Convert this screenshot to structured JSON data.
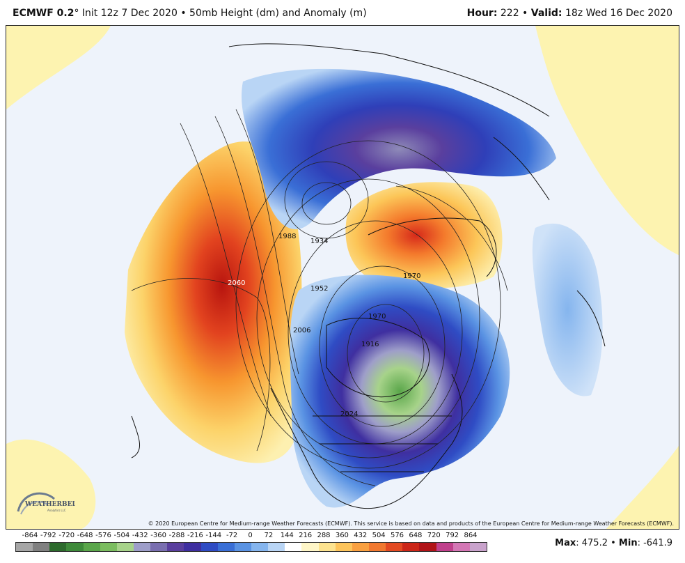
{
  "header": {
    "model": "ECMWF 0.2",
    "degree": "°",
    "init": " Init 12z 7 Dec 2020 • 50mb Height (dm) and Anomaly (m)",
    "hour_label": "Hour:",
    "hour_value": " 222 • ",
    "valid_label": "Valid:",
    "valid_value": " 18z Wed 16 Dec 2020"
  },
  "map": {
    "contour_labels": [
      "1934",
      "1988",
      "2060",
      "1952",
      "1970",
      "1970",
      "2006",
      "2024",
      "1916"
    ],
    "colors": {
      "background_ocean": "#eef3fb",
      "positive_anomaly_low": "#fdf3b0",
      "positive_anomaly_high": "#c21b12",
      "negative_anomaly_low": "#b9d7f5",
      "negative_anomaly_high": "#3b2f9a",
      "core_low": "#76b554"
    }
  },
  "copyright": "© 2020 European Centre for Medium-range Weather Forecasts (ECMWF). This service is based on data and products of the European Centre for Medium-range Weather Forecasts (ECMWF).",
  "logo": {
    "name": "WEATHERBELL",
    "sub": "Analytics LLC"
  },
  "colorbar": {
    "labels": [
      "-864",
      "-792",
      "-720",
      "-648",
      "-576",
      "-504",
      "-432",
      "-360",
      "-288",
      "-216",
      "-144",
      "-72",
      "0",
      "72",
      "144",
      "216",
      "288",
      "360",
      "432",
      "504",
      "576",
      "648",
      "720",
      "792",
      "864"
    ],
    "colors": [
      "#a6a6a6",
      "#808080",
      "#2d6b2d",
      "#3e8a3a",
      "#5aa64a",
      "#7bbd5f",
      "#a7d38a",
      "#9e9ec9",
      "#7a6fb0",
      "#5a3f9e",
      "#3f2fa0",
      "#2f4cc4",
      "#3a6fd6",
      "#5a93e3",
      "#85b5ee",
      "#b9d5f5",
      "#ffffff",
      "#fff6c7",
      "#fde38f",
      "#fdc45b",
      "#f9a040",
      "#f17930",
      "#e34a22",
      "#cc2618",
      "#b11418",
      "#c0408c",
      "#d477b5",
      "#c9a3cc"
    ]
  },
  "stats": {
    "max_label": "Max",
    "max_value": ": 475.2 • ",
    "min_label": "Min",
    "min_value": ": -641.9"
  }
}
